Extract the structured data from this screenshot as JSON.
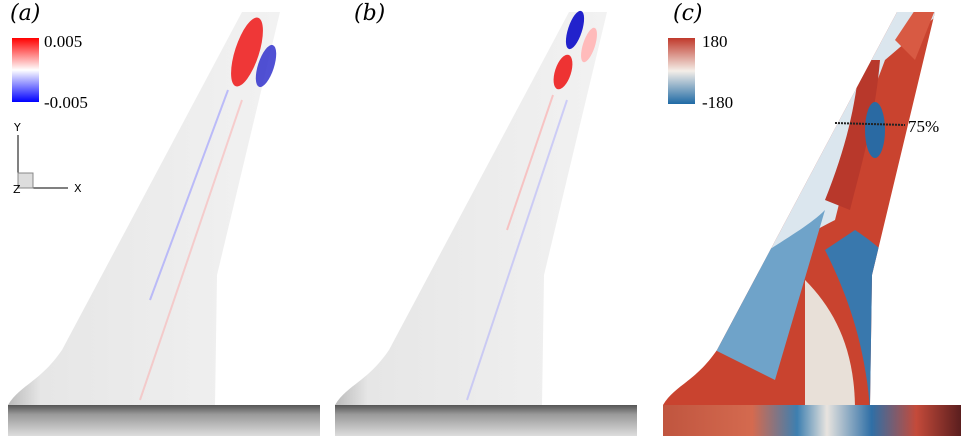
{
  "panels": [
    {
      "label": "(a)",
      "colorbar": {
        "max": "0.005",
        "min": "-0.005"
      }
    },
    {
      "label": "(b)"
    },
    {
      "label": "(c)",
      "colorbar": {
        "max": "180",
        "min": "-180"
      },
      "annotation": "75%"
    }
  ],
  "axes": {
    "y": "Y",
    "z": "Z",
    "x": "X"
  }
}
